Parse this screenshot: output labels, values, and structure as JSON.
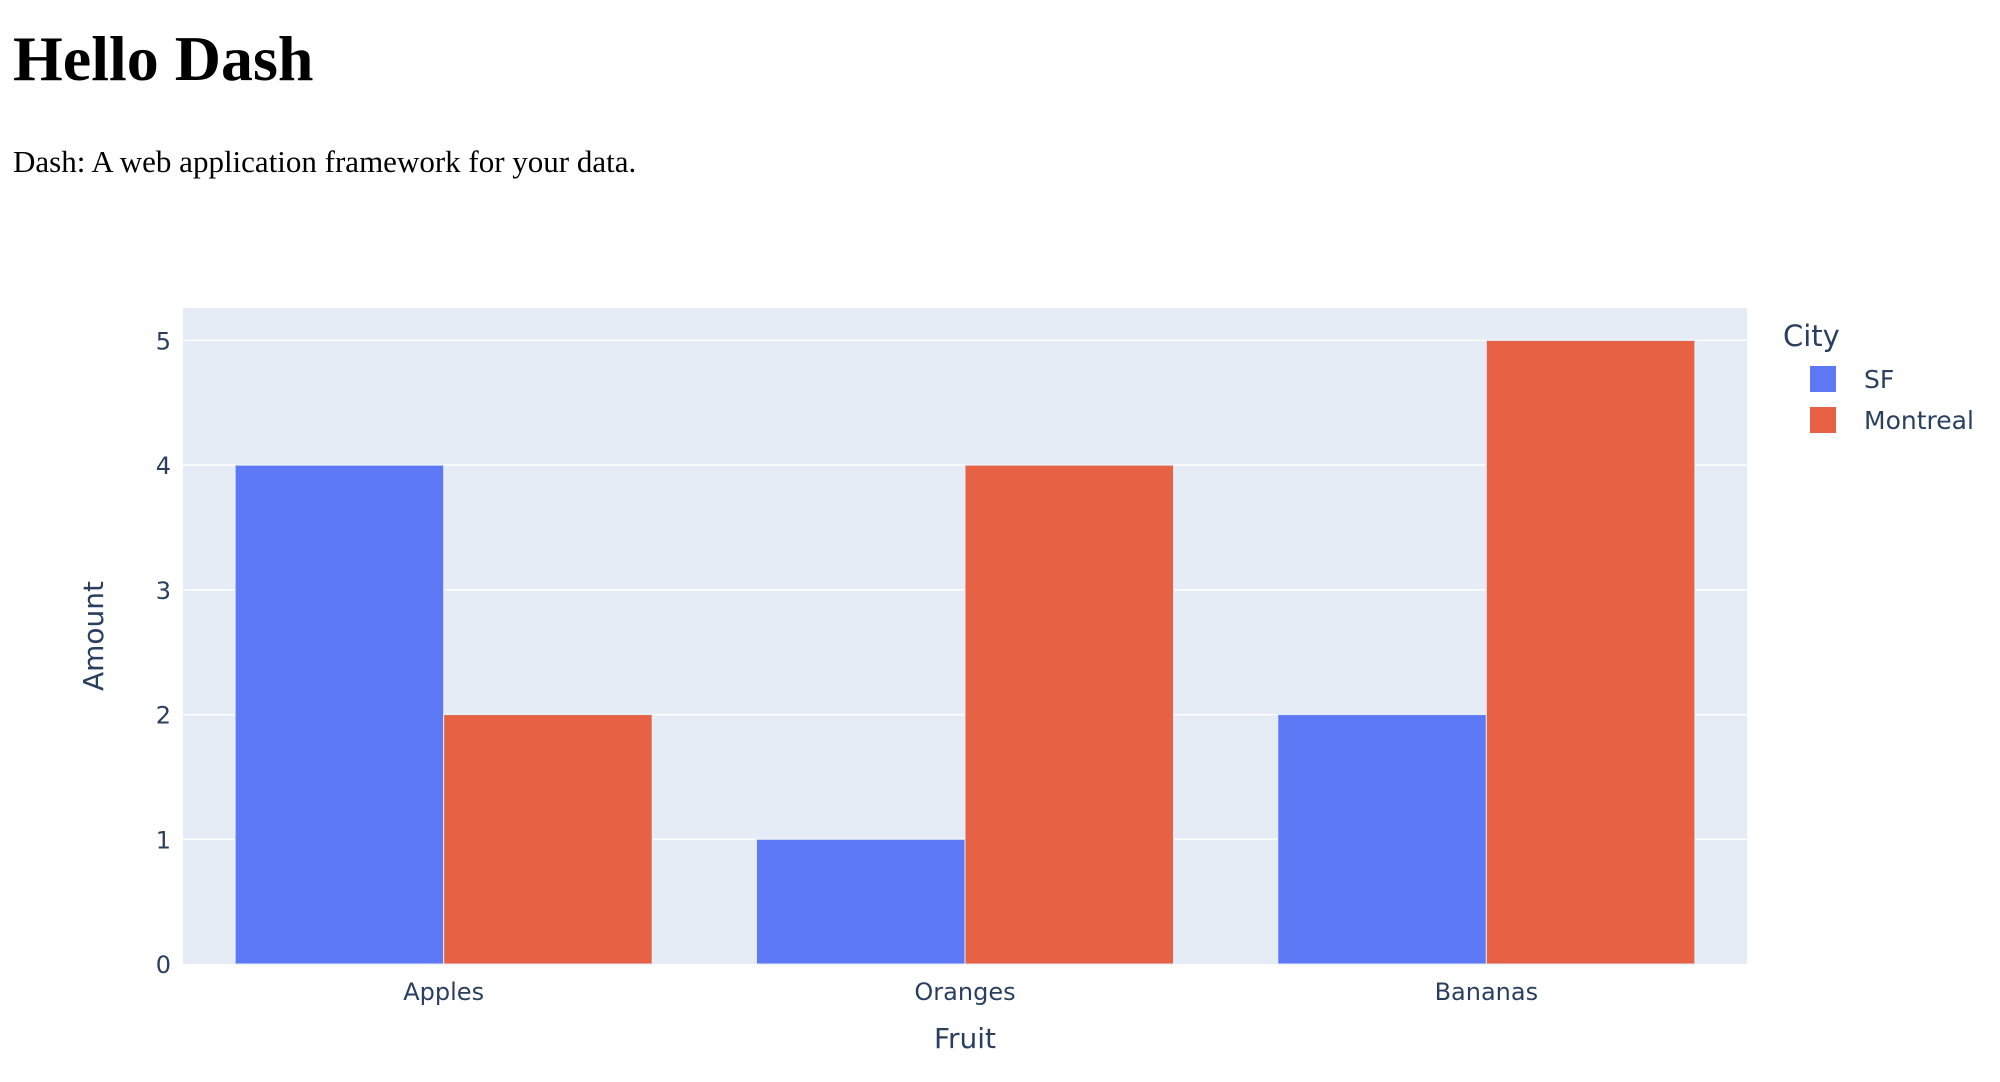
{
  "header": {
    "title": "Hello Dash",
    "subtitle": "Dash: A web application framework for your data."
  },
  "colors": {
    "plot_background": "#e5ecf6",
    "grid": "#ffffff",
    "axis_text": "#2a3f5f",
    "sf": "#636efa",
    "montreal": "#ef553b"
  },
  "chart_data": {
    "type": "bar",
    "barmode": "group",
    "categories": [
      "Apples",
      "Oranges",
      "Bananas"
    ],
    "series": [
      {
        "name": "SF",
        "values": [
          4,
          1,
          2
        ],
        "color": "#5c78f5"
      },
      {
        "name": "Montreal",
        "values": [
          2,
          4,
          5
        ],
        "color": "#e76145"
      }
    ],
    "xlabel": "Fruit",
    "ylabel": "Amount",
    "ylim": [
      0,
      5.26
    ],
    "yticks": [
      0,
      1,
      2,
      3,
      4,
      5
    ],
    "legend_title": "City",
    "legend_position": "top-right",
    "grid": true
  }
}
